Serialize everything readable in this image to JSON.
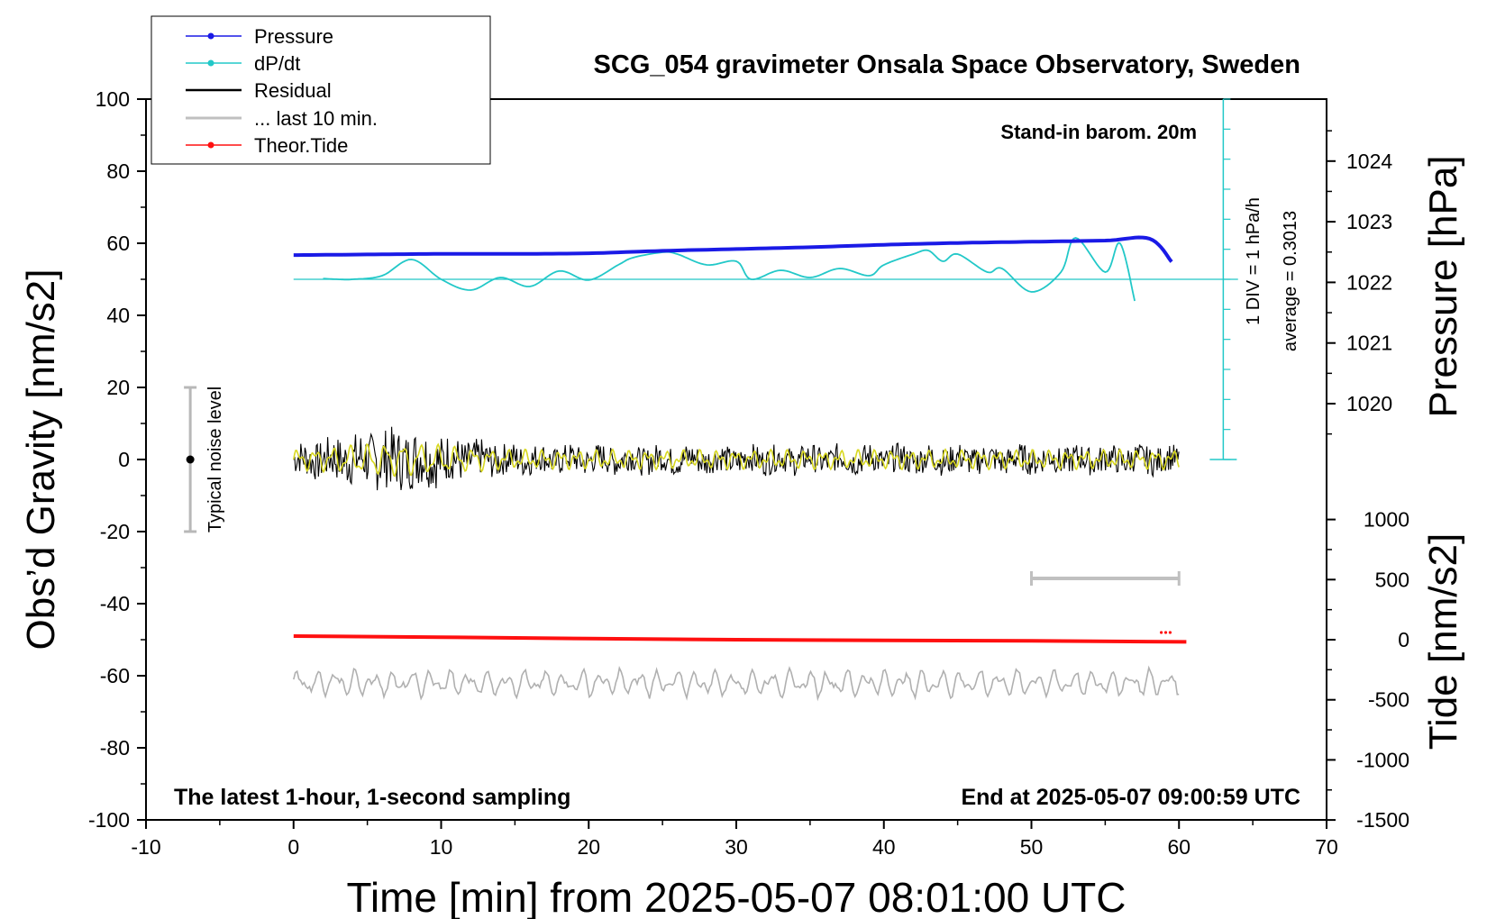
{
  "chart_data": {
    "type": "line",
    "title": "SCG_054 gravimeter Onsala Space Observatory, Sweden",
    "xlabel": "Time [min] from 2025-05-07 08:01:00 UTC",
    "ylabel": "Obs’d Gravity [nm/s2]",
    "y2label_pressure": "Pressure [hPa]",
    "y2label_tide": "Tide [nm/s2]",
    "xlim": [
      -10,
      70
    ],
    "ylim": [
      -100,
      100
    ],
    "pressure_range_hPa": [
      1019,
      1025
    ],
    "tide_range": [
      -1500,
      1500
    ],
    "x_ticks": [
      "-10",
      "0",
      "10",
      "20",
      "30",
      "40",
      "50",
      "60",
      "70"
    ],
    "y_ticks": [
      "-100",
      "-80",
      "-60",
      "-40",
      "-20",
      "0",
      "20",
      "40",
      "60",
      "80",
      "100"
    ],
    "pressure_ticks": [
      "1020",
      "1021",
      "1022",
      "1023",
      "1024"
    ],
    "tide_ticks": [
      "-1500",
      "-1000",
      "-500",
      "0",
      "500",
      "1000"
    ],
    "legend": [
      "Pressure",
      "dP/dt",
      "Residual",
      "... last 10 min.",
      "Theor.Tide"
    ],
    "legend_position": "top-left",
    "annotations": {
      "baro": "Stand-in barom. 20m",
      "scale_div": "1 DIV = 1 hPa/h",
      "average": "average = 0.3013",
      "noise": "Typical noise level",
      "latest": "The latest 1-hour, 1-second sampling",
      "end": "End at 2025-05-07 09:00:59 UTC"
    },
    "series": [
      {
        "name": "Pressure",
        "color": "#1a1ae6",
        "unit": "hPa",
        "x": [
          0,
          5,
          10,
          15,
          20,
          25,
          30,
          35,
          40,
          45,
          50,
          55,
          58,
          59.5
        ],
        "values": [
          1022.45,
          1022.46,
          1022.47,
          1022.47,
          1022.48,
          1022.52,
          1022.55,
          1022.58,
          1022.62,
          1022.65,
          1022.67,
          1022.69,
          1022.72,
          1022.34
        ]
      },
      {
        "name": "dP/dt",
        "color": "#22c8c8",
        "unit": "hPa/h (1 DIV = 1 hPa/h, baseline 50)",
        "x": [
          2,
          3,
          4,
          6,
          8,
          10,
          12,
          14,
          16,
          18,
          20,
          22,
          23,
          25,
          26,
          28,
          30,
          31,
          33,
          35,
          37,
          39,
          40,
          42,
          43,
          44,
          45,
          47,
          48,
          50,
          52,
          53,
          55,
          56,
          57
        ],
        "values": [
          50.2,
          50,
          50,
          51,
          55.5,
          50,
          47,
          50.5,
          48,
          52.3,
          49.8,
          54,
          56,
          57.5,
          57,
          54,
          55,
          50,
          52.5,
          50.5,
          53,
          51,
          54,
          57,
          58,
          55,
          57,
          52,
          53,
          46.5,
          52,
          61.5,
          52,
          60,
          44
        ]
      },
      {
        "name": "Residual",
        "color": "#000000",
        "unit": "nm/s2",
        "noise_amplitude": 7.0
      },
      {
        "name": "... last 10 min.",
        "color": "#c0c0c0",
        "x": [
          50,
          60
        ],
        "values": [
          -33,
          -33
        ]
      },
      {
        "name": "Theor.Tide",
        "color": "#ff1010",
        "unit": "nm/s2",
        "x": [
          0,
          10,
          20,
          30,
          40,
          50,
          60.5
        ],
        "values": [
          -49,
          -49.3,
          -49.7,
          -50,
          -50.2,
          -50.3,
          -50.6
        ]
      },
      {
        "name": "Yellow smoothed residual",
        "color": "#d8d820",
        "noise_amplitude": 2.5
      },
      {
        "name": "Grey noise trace",
        "color": "#b0b0b0",
        "offset": -62,
        "noise_amplitude": 3.0
      }
    ],
    "noise_bar": {
      "x": -7,
      "center": 0,
      "range": [
        -20,
        20
      ]
    }
  }
}
